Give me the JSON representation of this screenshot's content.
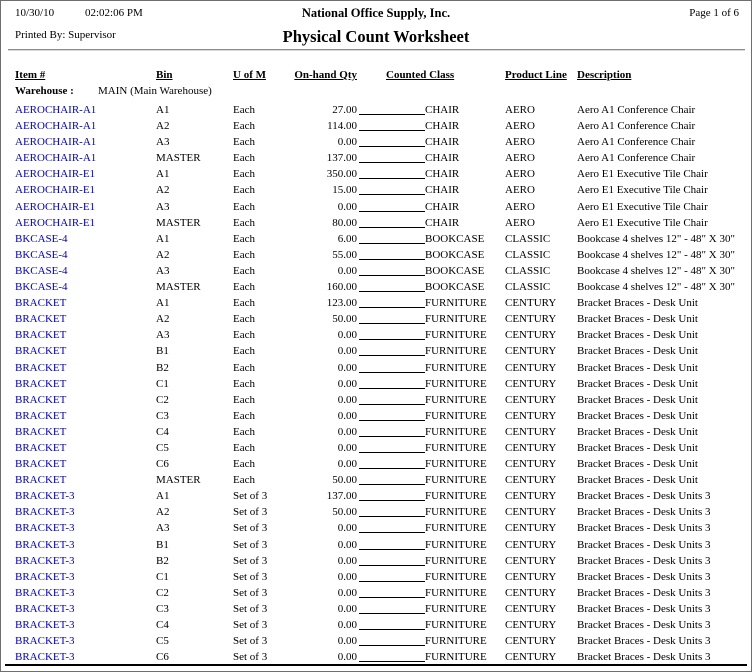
{
  "header": {
    "date": "10/30/10",
    "time": "02:02:06 PM",
    "company": "National Office Supply, Inc.",
    "page_info": "Page 1 of 6",
    "printed_by": "Printed By: Supervisor",
    "title": "Physical Count Worksheet"
  },
  "table": {
    "columns": [
      "Item #",
      "Bin",
      "U of M",
      "On-hand Qty",
      "Counted Class",
      "Product Line",
      "Description"
    ],
    "warehouse_label": "Warehouse :",
    "warehouse_value": "MAIN (Main Warehouse)",
    "rows": [
      {
        "item": "AEROCHAIR-A1",
        "bin": "A1",
        "uom": "Each",
        "qty": "27.00",
        "class": "CHAIR",
        "product_line": "AERO",
        "description": "Aero A1 Conference Chair"
      },
      {
        "item": "AEROCHAIR-A1",
        "bin": "A2",
        "uom": "Each",
        "qty": "114.00",
        "class": "CHAIR",
        "product_line": "AERO",
        "description": "Aero A1 Conference Chair"
      },
      {
        "item": "AEROCHAIR-A1",
        "bin": "A3",
        "uom": "Each",
        "qty": "0.00",
        "class": "CHAIR",
        "product_line": "AERO",
        "description": "Aero A1 Conference Chair"
      },
      {
        "item": "AEROCHAIR-A1",
        "bin": "MASTER",
        "uom": "Each",
        "qty": "137.00",
        "class": "CHAIR",
        "product_line": "AERO",
        "description": "Aero A1 Conference Chair"
      },
      {
        "item": "AEROCHAIR-E1",
        "bin": "A1",
        "uom": "Each",
        "qty": "350.00",
        "class": "CHAIR",
        "product_line": "AERO",
        "description": "Aero E1 Executive Tile Chair"
      },
      {
        "item": "AEROCHAIR-E1",
        "bin": "A2",
        "uom": "Each",
        "qty": "15.00",
        "class": "CHAIR",
        "product_line": "AERO",
        "description": "Aero E1 Executive Tile Chair"
      },
      {
        "item": "AEROCHAIR-E1",
        "bin": "A3",
        "uom": "Each",
        "qty": "0.00",
        "class": "CHAIR",
        "product_line": "AERO",
        "description": "Aero E1 Executive Tile Chair"
      },
      {
        "item": "AEROCHAIR-E1",
        "bin": "MASTER",
        "uom": "Each",
        "qty": "80.00",
        "class": "CHAIR",
        "product_line": "AERO",
        "description": "Aero E1 Executive Tile Chair"
      },
      {
        "item": "BKCASE-4",
        "bin": "A1",
        "uom": "Each",
        "qty": "6.00",
        "class": "BOOKCASE",
        "product_line": "CLASSIC",
        "description": "Bookcase 4 shelves 12\" - 48\" X 30\""
      },
      {
        "item": "BKCASE-4",
        "bin": "A2",
        "uom": "Each",
        "qty": "55.00",
        "class": "BOOKCASE",
        "product_line": "CLASSIC",
        "description": "Bookcase 4 shelves 12\" - 48\" X 30\""
      },
      {
        "item": "BKCASE-4",
        "bin": "A3",
        "uom": "Each",
        "qty": "0.00",
        "class": "BOOKCASE",
        "product_line": "CLASSIC",
        "description": "Bookcase 4 shelves 12\" - 48\" X 30\""
      },
      {
        "item": "BKCASE-4",
        "bin": "MASTER",
        "uom": "Each",
        "qty": "160.00",
        "class": "BOOKCASE",
        "product_line": "CLASSIC",
        "description": "Bookcase 4 shelves 12\" - 48\" X 30\""
      },
      {
        "item": "BRACKET",
        "bin": "A1",
        "uom": "Each",
        "qty": "123.00",
        "class": "FURNITURE",
        "product_line": "CENTURY",
        "description": "Bracket Braces - Desk Unit"
      },
      {
        "item": "BRACKET",
        "bin": "A2",
        "uom": "Each",
        "qty": "50.00",
        "class": "FURNITURE",
        "product_line": "CENTURY",
        "description": "Bracket Braces - Desk Unit"
      },
      {
        "item": "BRACKET",
        "bin": "A3",
        "uom": "Each",
        "qty": "0.00",
        "class": "FURNITURE",
        "product_line": "CENTURY",
        "description": "Bracket Braces - Desk Unit"
      },
      {
        "item": "BRACKET",
        "bin": "B1",
        "uom": "Each",
        "qty": "0.00",
        "class": "FURNITURE",
        "product_line": "CENTURY",
        "description": "Bracket Braces - Desk Unit"
      },
      {
        "item": "BRACKET",
        "bin": "B2",
        "uom": "Each",
        "qty": "0.00",
        "class": "FURNITURE",
        "product_line": "CENTURY",
        "description": "Bracket Braces - Desk Unit"
      },
      {
        "item": "BRACKET",
        "bin": "C1",
        "uom": "Each",
        "qty": "0.00",
        "class": "FURNITURE",
        "product_line": "CENTURY",
        "description": "Bracket Braces - Desk Unit"
      },
      {
        "item": "BRACKET",
        "bin": "C2",
        "uom": "Each",
        "qty": "0.00",
        "class": "FURNITURE",
        "product_line": "CENTURY",
        "description": "Bracket Braces - Desk Unit"
      },
      {
        "item": "BRACKET",
        "bin": "C3",
        "uom": "Each",
        "qty": "0.00",
        "class": "FURNITURE",
        "product_line": "CENTURY",
        "description": "Bracket Braces - Desk Unit"
      },
      {
        "item": "BRACKET",
        "bin": "C4",
        "uom": "Each",
        "qty": "0.00",
        "class": "FURNITURE",
        "product_line": "CENTURY",
        "description": "Bracket Braces - Desk Unit"
      },
      {
        "item": "BRACKET",
        "bin": "C5",
        "uom": "Each",
        "qty": "0.00",
        "class": "FURNITURE",
        "product_line": "CENTURY",
        "description": "Bracket Braces - Desk Unit"
      },
      {
        "item": "BRACKET",
        "bin": "C6",
        "uom": "Each",
        "qty": "0.00",
        "class": "FURNITURE",
        "product_line": "CENTURY",
        "description": "Bracket Braces - Desk Unit"
      },
      {
        "item": "BRACKET",
        "bin": "MASTER",
        "uom": "Each",
        "qty": "50.00",
        "class": "FURNITURE",
        "product_line": "CENTURY",
        "description": "Bracket Braces - Desk Unit"
      },
      {
        "item": "BRACKET-3",
        "bin": "A1",
        "uom": "Set of 3",
        "qty": "137.00",
        "class": "FURNITURE",
        "product_line": "CENTURY",
        "description": "Bracket Braces - Desk Units 3"
      },
      {
        "item": "BRACKET-3",
        "bin": "A2",
        "uom": "Set of 3",
        "qty": "50.00",
        "class": "FURNITURE",
        "product_line": "CENTURY",
        "description": "Bracket Braces - Desk Units 3"
      },
      {
        "item": "BRACKET-3",
        "bin": "A3",
        "uom": "Set of 3",
        "qty": "0.00",
        "class": "FURNITURE",
        "product_line": "CENTURY",
        "description": "Bracket Braces - Desk Units 3"
      },
      {
        "item": "BRACKET-3",
        "bin": "B1",
        "uom": "Set of 3",
        "qty": "0.00",
        "class": "FURNITURE",
        "product_line": "CENTURY",
        "description": "Bracket Braces - Desk Units 3"
      },
      {
        "item": "BRACKET-3",
        "bin": "B2",
        "uom": "Set of 3",
        "qty": "0.00",
        "class": "FURNITURE",
        "product_line": "CENTURY",
        "description": "Bracket Braces - Desk Units 3"
      },
      {
        "item": "BRACKET-3",
        "bin": "C1",
        "uom": "Set of 3",
        "qty": "0.00",
        "class": "FURNITURE",
        "product_line": "CENTURY",
        "description": "Bracket Braces - Desk Units 3"
      },
      {
        "item": "BRACKET-3",
        "bin": "C2",
        "uom": "Set of 3",
        "qty": "0.00",
        "class": "FURNITURE",
        "product_line": "CENTURY",
        "description": "Bracket Braces - Desk Units 3"
      },
      {
        "item": "BRACKET-3",
        "bin": "C3",
        "uom": "Set of 3",
        "qty": "0.00",
        "class": "FURNITURE",
        "product_line": "CENTURY",
        "description": "Bracket Braces - Desk Units 3"
      },
      {
        "item": "BRACKET-3",
        "bin": "C4",
        "uom": "Set of 3",
        "qty": "0.00",
        "class": "FURNITURE",
        "product_line": "CENTURY",
        "description": "Bracket Braces - Desk Units 3"
      },
      {
        "item": "BRACKET-3",
        "bin": "C5",
        "uom": "Set of 3",
        "qty": "0.00",
        "class": "FURNITURE",
        "product_line": "CENTURY",
        "description": "Bracket Braces - Desk Units 3"
      },
      {
        "item": "BRACKET-3",
        "bin": "C6",
        "uom": "Set of 3",
        "qty": "0.00",
        "class": "FURNITURE",
        "product_line": "CENTURY",
        "description": "Bracket Braces - Desk Units 3"
      }
    ]
  },
  "colors": {
    "link": "#0000CC",
    "text": "#000000",
    "border": "#6e6e6e"
  }
}
